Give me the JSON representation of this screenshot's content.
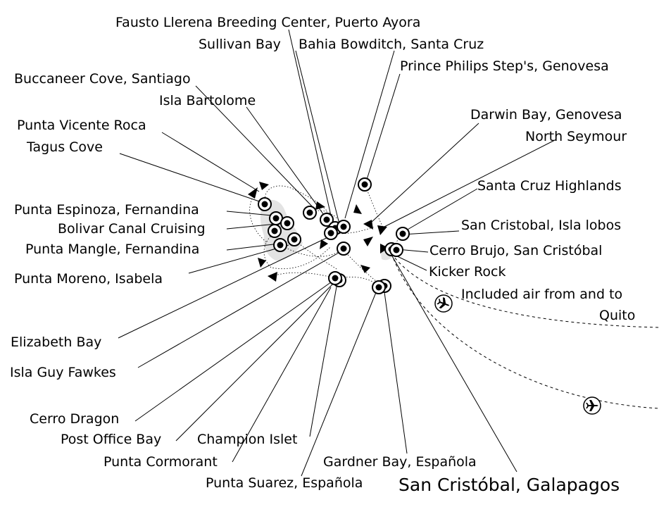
{
  "map": {
    "destination_label": "San Cristóbal, Galapagos",
    "flight_label_line1": "Included air from and to",
    "flight_label_line2": "Quito",
    "icons": {
      "stop": "stop-marker-icon",
      "plane": "airplane-icon",
      "direction": "route-arrow-icon"
    },
    "stops": [
      "Fausto Llerena Breeding Center, Puerto Ayora",
      "Sullivan Bay",
      "Bahia Bowditch, Santa Cruz",
      "Prince Philips Step's, Genovesa",
      "Buccaneer Cove, Santiago",
      "Isla Bartolome",
      "Punta Vicente Roca",
      "Tagus Cove",
      "Darwin Bay, Genovesa",
      "North Seymour",
      "Santa Cruz Highlands",
      "Punta Espinoza, Fernandina",
      "Bolivar Canal Cruising",
      "San Cristobal, Isla lobos",
      "Punta Mangle, Fernandina",
      "Cerro Brujo, San Cristóbal",
      "Kicker Rock",
      "Punta Moreno, Isabela",
      "Elizabeth Bay",
      "Isla Guy Fawkes",
      "Cerro Dragon",
      "Post Office Bay",
      "Champion Islet",
      "Punta Cormorant",
      "Gardner Bay, Española",
      "Punta Suarez, Española"
    ]
  }
}
